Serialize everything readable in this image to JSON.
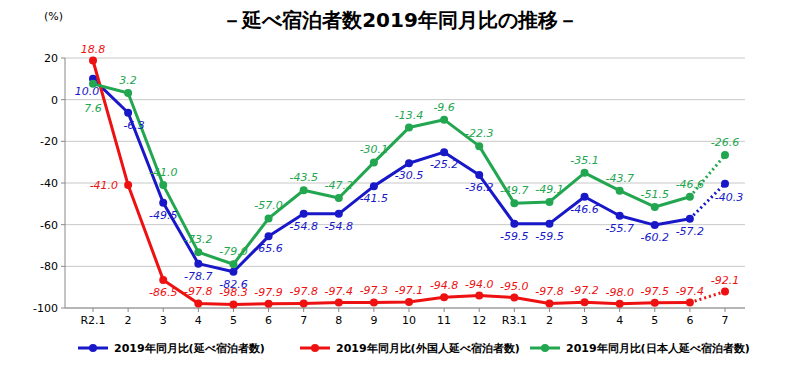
{
  "chart_data": {
    "type": "line",
    "title": "－延べ宿泊者数2019年同月比の推移－",
    "y_label": "(%)",
    "categories": [
      "R2.1",
      "2",
      "3",
      "4",
      "5",
      "6",
      "7",
      "8",
      "9",
      "10",
      "11",
      "12",
      "R3.1",
      "2",
      "3",
      "4",
      "5",
      "6",
      "7"
    ],
    "ylim": [
      -100,
      20
    ],
    "yticks": [
      -100,
      -80,
      -60,
      -40,
      -20,
      0,
      20
    ],
    "grid": true,
    "legend": "bottom",
    "data_labels": true,
    "marker": "circle",
    "series": [
      {
        "name": "2019年同月比(延べ宿泊者数)",
        "color": "#1818c8",
        "values": [
          10.0,
          -6.3,
          -49.5,
          -78.7,
          -82.6,
          -65.6,
          -54.8,
          -54.8,
          -41.5,
          -30.5,
          -25.2,
          -36.2,
          -59.5,
          -59.5,
          -46.6,
          -55.7,
          -60.2,
          -57.2,
          -40.3
        ],
        "value_labels": [
          "10.0",
          "-6.3",
          "-49.5",
          "-78.7",
          "-82.6",
          "-65.6",
          "-54.8",
          "-54.8",
          "-41.5",
          "-30.5",
          "-25.2",
          "-36.2",
          "-59.5",
          "-59.5",
          "-46.6",
          "-55.7",
          "-60.2",
          "-57.2",
          "-40.3"
        ]
      },
      {
        "name": "2019年同月比(外国人延べ宿泊者数)",
        "color": "#ee1111",
        "values": [
          18.8,
          -41.0,
          -86.5,
          -97.8,
          -98.3,
          -97.9,
          -97.8,
          -97.4,
          -97.3,
          -97.1,
          -94.8,
          -94.0,
          -95.0,
          -97.8,
          -97.2,
          -98.0,
          -97.5,
          -97.4,
          -92.1
        ],
        "value_labels": [
          "18.8",
          "-41.0",
          "-86.5",
          "-97.8",
          "-98.3",
          "-97.9",
          "-97.8",
          "-97.4",
          "-97.3",
          "-97.1",
          "-94.8",
          "-94.0",
          "-95.0",
          "-97.8",
          "-97.2",
          "-98.0",
          "-97.5",
          "-97.4",
          "-92.1"
        ]
      },
      {
        "name": "2019年同月比(日本人延べ宿泊者数)",
        "color": "#22a650",
        "values": [
          7.6,
          3.2,
          -41.0,
          -73.2,
          -79.0,
          -57.0,
          -43.5,
          -47.2,
          -30.1,
          -13.4,
          -9.6,
          -22.3,
          -49.7,
          -49.1,
          -35.1,
          -43.7,
          -51.5,
          -46.6,
          -26.6
        ],
        "value_labels": [
          "7.6",
          "3.2",
          "-41.0",
          "-73.2",
          "-79.0",
          "-57.0",
          "-43.5",
          "-47.2",
          "-30.1",
          "-13.4",
          "-9.6",
          "-22.3",
          "-49.7",
          "-49.1",
          "-35.1",
          "-43.7",
          "-51.5",
          "-46.6",
          "-26.6"
        ]
      }
    ]
  }
}
